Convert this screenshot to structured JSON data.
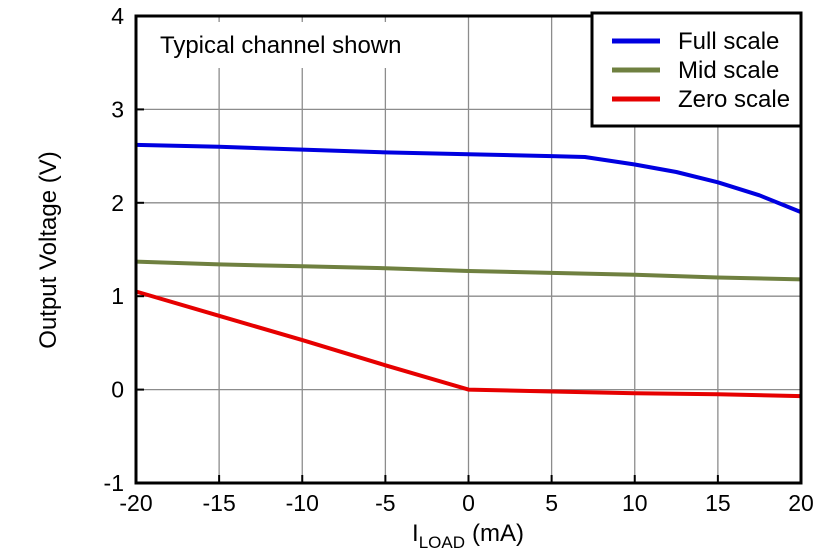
{
  "chart_data": {
    "type": "line",
    "title": "",
    "annotation": "Typical channel shown",
    "xlabel": {
      "main": "I",
      "sub": "LOAD",
      "unit": "(mA)"
    },
    "ylabel": "Output Voltage (V)",
    "xlim": [
      -20,
      20
    ],
    "ylim": [
      -1,
      4
    ],
    "xticks": [
      -20,
      -15,
      -10,
      -5,
      0,
      5,
      10,
      15,
      20
    ],
    "yticks": [
      -1,
      0,
      1,
      2,
      3,
      4
    ],
    "grid": true,
    "legend_position": "top-right",
    "series": [
      {
        "name": "Full scale",
        "color": "#0000E0",
        "points": [
          [
            -20,
            2.62
          ],
          [
            -15,
            2.6
          ],
          [
            -10,
            2.57
          ],
          [
            -5,
            2.54
          ],
          [
            0,
            2.52
          ],
          [
            5,
            2.5
          ],
          [
            7,
            2.49
          ],
          [
            10,
            2.41
          ],
          [
            12.5,
            2.33
          ],
          [
            15,
            2.22
          ],
          [
            17.5,
            2.08
          ],
          [
            20,
            1.9
          ]
        ]
      },
      {
        "name": "Mid scale",
        "color": "#6F8040",
        "points": [
          [
            -20,
            1.37
          ],
          [
            -15,
            1.34
          ],
          [
            -10,
            1.32
          ],
          [
            -5,
            1.3
          ],
          [
            0,
            1.27
          ],
          [
            5,
            1.25
          ],
          [
            10,
            1.23
          ],
          [
            15,
            1.2
          ],
          [
            20,
            1.18
          ]
        ]
      },
      {
        "name": "Zero scale",
        "color": "#E60000",
        "points": [
          [
            -20,
            1.05
          ],
          [
            -15,
            0.79
          ],
          [
            -10,
            0.53
          ],
          [
            -5,
            0.26
          ],
          [
            0,
            0.0
          ],
          [
            5,
            -0.02
          ],
          [
            10,
            -0.04
          ],
          [
            15,
            -0.05
          ],
          [
            20,
            -0.07
          ]
        ]
      }
    ]
  },
  "colors": {
    "grid": "#8C8C8C",
    "axis": "#000000",
    "background": "#FFFFFF"
  }
}
